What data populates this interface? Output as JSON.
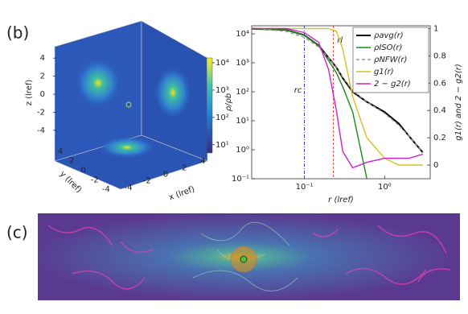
{
  "panel_labels": [
    "(b)",
    "(c)"
  ],
  "cube": {
    "z_label": "z (lref)",
    "y_label": "y (lref)",
    "x_label": "x (lref)",
    "lim": [
      -5,
      5
    ],
    "z_ticks": [
      4,
      2,
      0,
      -2,
      -4
    ],
    "y_ticks": [
      4,
      2,
      0,
      -2,
      -4
    ],
    "x_ticks": [
      -4,
      -2,
      0,
      2,
      4
    ],
    "colorbar_lim": [
      5,
      15000
    ],
    "colorbar_ticks": [
      {
        "value": 10000,
        "label": "10⁴"
      },
      {
        "value": 1000,
        "label": "10³"
      },
      {
        "value": 100,
        "label": "10²"
      },
      {
        "value": 10,
        "label": "10¹"
      }
    ]
  },
  "chart_data": {
    "type": "line",
    "x_label": "r (lref)",
    "y_label": "ρ/ρb",
    "y2_label": "g1(r) and 2 − g2(r)",
    "log_x": true,
    "log_y": true,
    "legend": "upper right",
    "xlim": [
      0.022,
      3.7
    ],
    "ylim": [
      0.1,
      19000
    ],
    "y2lim": [
      -0.1,
      1.02
    ],
    "xticks": [
      {
        "value": 0.1,
        "label": "10⁻¹"
      },
      {
        "value": 1,
        "label": "10⁰"
      }
    ],
    "yticks": [
      {
        "value": 0.1,
        "label": "10⁻¹"
      },
      {
        "value": 1,
        "label": "10⁰"
      },
      {
        "value": 10,
        "label": "10¹"
      },
      {
        "value": 100,
        "label": "10²"
      },
      {
        "value": 1000,
        "label": "10³"
      },
      {
        "value": 10000,
        "label": "10⁴"
      }
    ],
    "y2ticks": [
      0,
      0.2,
      0.4,
      0.6,
      0.8,
      1
    ],
    "x": [
      0.022,
      0.06,
      0.1,
      0.15,
      0.2,
      0.25,
      0.3,
      0.4,
      0.6,
      1,
      1.5,
      2,
      3
    ],
    "series": [
      {
        "name": "ρavg(r)",
        "color": "#000000",
        "values": [
          15000,
          13500,
          9000,
          4000,
          1500,
          700,
          300,
          100,
          45,
          20,
          8,
          3,
          0.8
        ]
      },
      {
        "name": "ρISO(r)",
        "color": "#1a8a1a",
        "values": [
          15000,
          13500,
          9000,
          4000,
          1200,
          450,
          150,
          20,
          0.1,
          null,
          null,
          null,
          null
        ]
      },
      {
        "name": "ρNFW(r)",
        "color": "#999999",
        "dash": true,
        "values": [
          16000,
          12000,
          7500,
          3500,
          1500,
          700,
          320,
          110,
          45,
          18,
          7,
          3,
          0.8
        ]
      },
      {
        "name": "g1(r)",
        "color": "#d8c020",
        "axis": "y2",
        "values": [
          1,
          1,
          1,
          1,
          1,
          0.98,
          0.85,
          0.5,
          0.2,
          0.05,
          0,
          0,
          0
        ]
      },
      {
        "name": "2 − g2(r)",
        "color": "#d020c8",
        "axis": "y2",
        "values": [
          1,
          1,
          0.97,
          0.9,
          0.7,
          0.4,
          0.1,
          -0.02,
          0.02,
          0.05,
          0.05,
          0.05,
          0.08
        ]
      }
    ],
    "annotations": [
      {
        "text": "rc",
        "x": 0.1,
        "color": "#2020c0"
      },
      {
        "text": "rl",
        "x": 0.23,
        "color": "#d03020"
      }
    ]
  }
}
